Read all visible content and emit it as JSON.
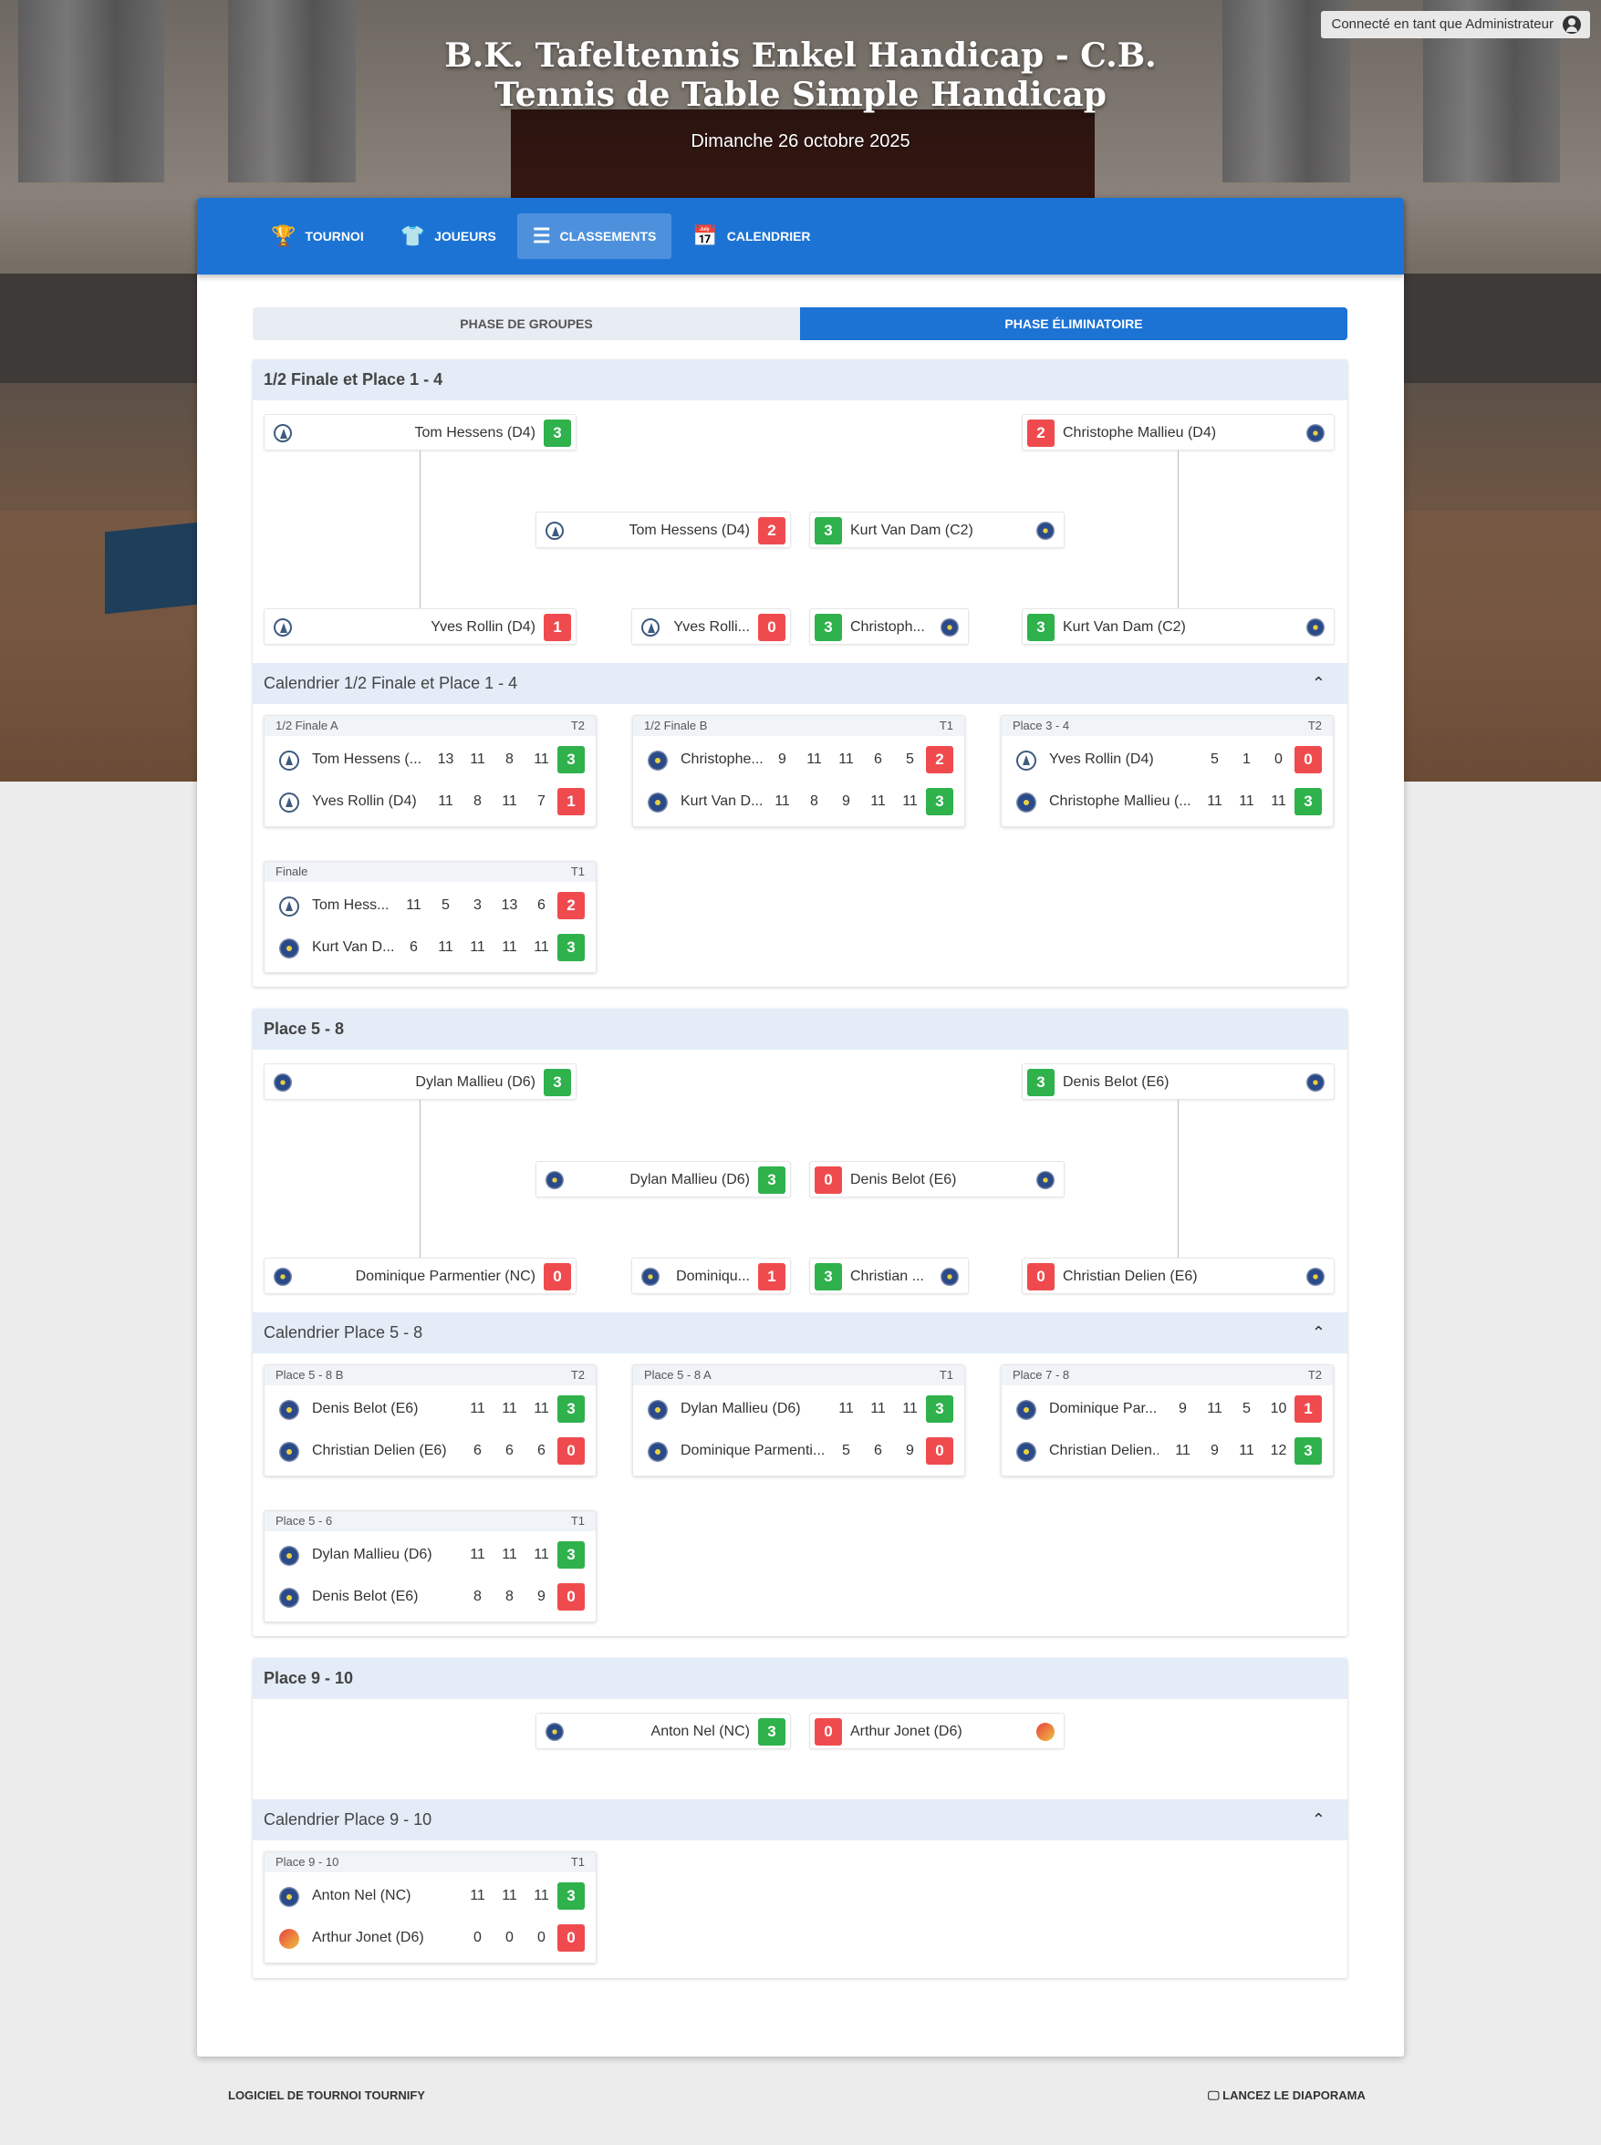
{
  "login_label": "Connecté en tant que Administrateur",
  "title": "B.K. Tafeltennis Enkel Handicap - C.B. Tennis de Table Simple Handicap",
  "date": "Dimanche 26 octobre 2025",
  "nav": [
    {
      "label": "TOURNOI",
      "icon": "trophy-icon"
    },
    {
      "label": "JOUEURS",
      "icon": "shirt-icon"
    },
    {
      "label": "CLASSEMENTS",
      "icon": "list-icon"
    },
    {
      "label": "CALENDRIER",
      "icon": "calendar-icon"
    }
  ],
  "tabs": [
    "PHASE DE GROUPES",
    "PHASE ÉLIMINATOIRE"
  ],
  "s1": {
    "title": "1/2 Finale et Place 1 - 4",
    "b": [
      {
        "name": "Tom Hessens (D4)",
        "score": "3"
      },
      {
        "name": "Christophe Mallieu (D4)",
        "score": "2"
      },
      {
        "name": "Tom Hessens (D4)",
        "score": "2"
      },
      {
        "name": "Kurt Van Dam (C2)",
        "score": "3"
      },
      {
        "name": "Yves Rollin (D4)",
        "score": "1"
      },
      {
        "name": "Yves Rolli...",
        "score": "0"
      },
      {
        "name": "Christoph...",
        "score": "3"
      },
      {
        "name": "Kurt Van Dam (C2)",
        "score": "3"
      }
    ],
    "cal_title": "Calendrier 1/2 Finale et Place 1 - 4",
    "m": [
      {
        "label": "1/2 Finale A",
        "table": "T2",
        "p": [
          {
            "name": "Tom Hessens (...",
            "sets": [
              "13",
              "11",
              "8",
              "11"
            ],
            "score": "3"
          },
          {
            "name": "Yves Rollin (D4)",
            "sets": [
              "11",
              "8",
              "11",
              "7"
            ],
            "score": "1"
          }
        ]
      },
      {
        "label": "1/2 Finale B",
        "table": "T1",
        "p": [
          {
            "name": "Christophe...",
            "sets": [
              "9",
              "11",
              "11",
              "6",
              "5"
            ],
            "score": "2"
          },
          {
            "name": "Kurt Van D...",
            "sets": [
              "11",
              "8",
              "9",
              "11",
              "11"
            ],
            "score": "3"
          }
        ]
      },
      {
        "label": "Place 3 - 4",
        "table": "T2",
        "p": [
          {
            "name": "Yves Rollin (D4)",
            "sets": [
              "5",
              "1",
              "0"
            ],
            "score": "0"
          },
          {
            "name": "Christophe Mallieu (...",
            "sets": [
              "11",
              "11",
              "11"
            ],
            "score": "3"
          }
        ]
      },
      {
        "label": "Finale",
        "table": "T1",
        "p": [
          {
            "name": "Tom Hess...",
            "sets": [
              "11",
              "5",
              "3",
              "13",
              "6"
            ],
            "score": "2"
          },
          {
            "name": "Kurt Van D...",
            "sets": [
              "6",
              "11",
              "11",
              "11",
              "11"
            ],
            "score": "3"
          }
        ]
      }
    ]
  },
  "s2": {
    "title": "Place 5 - 8",
    "b": [
      {
        "name": "Dylan Mallieu (D6)",
        "score": "3"
      },
      {
        "name": "Denis Belot (E6)",
        "score": "3"
      },
      {
        "name": "Dylan Mallieu (D6)",
        "score": "3"
      },
      {
        "name": "Denis Belot (E6)",
        "score": "0"
      },
      {
        "name": "Dominique Parmentier (NC)",
        "score": "0"
      },
      {
        "name": "Dominiqu...",
        "score": "1"
      },
      {
        "name": "Christian ...",
        "score": "3"
      },
      {
        "name": "Christian Delien (E6)",
        "score": "0"
      }
    ],
    "cal_title": "Calendrier Place 5 - 8",
    "m": [
      {
        "label": "Place 5 - 8 B",
        "table": "T2",
        "p": [
          {
            "name": "Denis Belot (E6)",
            "sets": [
              "11",
              "11",
              "11"
            ],
            "score": "3"
          },
          {
            "name": "Christian Delien (E6)",
            "sets": [
              "6",
              "6",
              "6"
            ],
            "score": "0"
          }
        ]
      },
      {
        "label": "Place 5 - 8 A",
        "table": "T1",
        "p": [
          {
            "name": "Dylan Mallieu (D6)",
            "sets": [
              "11",
              "11",
              "11"
            ],
            "score": "3"
          },
          {
            "name": "Dominique Parmenti...",
            "sets": [
              "5",
              "6",
              "9"
            ],
            "score": "0"
          }
        ]
      },
      {
        "label": "Place 7 - 8",
        "table": "T2",
        "p": [
          {
            "name": "Dominique Par...",
            "sets": [
              "9",
              "11",
              "5",
              "10"
            ],
            "score": "1"
          },
          {
            "name": "Christian Delien...",
            "sets": [
              "11",
              "9",
              "11",
              "12"
            ],
            "score": "3"
          }
        ]
      },
      {
        "label": "Place 5 - 6",
        "table": "T1",
        "p": [
          {
            "name": "Dylan Mallieu (D6)",
            "sets": [
              "11",
              "11",
              "11"
            ],
            "score": "3"
          },
          {
            "name": "Denis Belot (E6)",
            "sets": [
              "8",
              "8",
              "9"
            ],
            "score": "0"
          }
        ]
      }
    ]
  },
  "s3": {
    "title": "Place 9 - 10",
    "b": [
      {
        "name": "Anton Nel (NC)",
        "score": "3"
      },
      {
        "name": "Arthur Jonet (D6)",
        "score": "0"
      }
    ],
    "cal_title": "Calendrier Place 9 - 10",
    "m": [
      {
        "label": "Place 9 - 10",
        "table": "T1",
        "p": [
          {
            "name": "Anton Nel (NC)",
            "sets": [
              "11",
              "11",
              "11"
            ],
            "score": "3"
          },
          {
            "name": "Arthur Jonet (D6)",
            "sets": [
              "0",
              "0",
              "0"
            ],
            "score": "0"
          }
        ]
      }
    ]
  },
  "footer": {
    "left": "LOGICIEL DE TOURNOI TOURNIFY",
    "right": "LANCEZ LE DIAPORAMA"
  },
  "colors": {
    "primary": "#1c73d4",
    "win": "#2fb14c",
    "loss": "#ef4b4f"
  }
}
